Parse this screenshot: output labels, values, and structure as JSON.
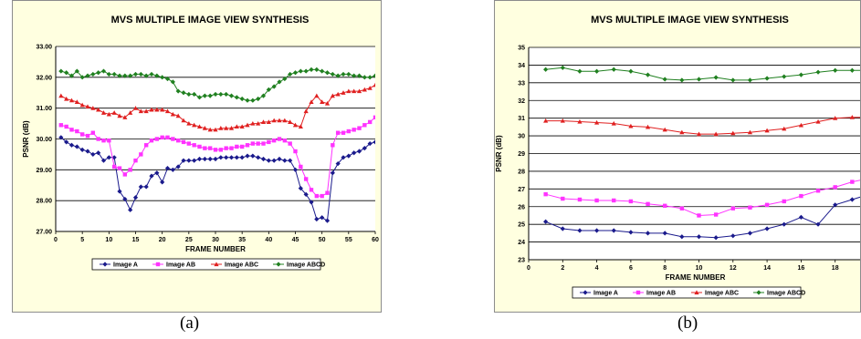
{
  "captions": [
    "(a)",
    "(b)"
  ],
  "legend_colors": [
    "#1a1a8c",
    "#ff33ff",
    "#e02020",
    "#208020"
  ],
  "legend_markers": [
    "diamond",
    "square",
    "triangle",
    "diamond"
  ],
  "chart_data": [
    {
      "type": "line",
      "title": "MVS MULTIPLE IMAGE VIEW SYNTHESIS",
      "xlabel": "FRAME NUMBER",
      "ylabel": "PSNR (dB)",
      "xlim": [
        0,
        60
      ],
      "ylim": [
        27,
        33
      ],
      "xticks": [
        "0",
        "5",
        "10",
        "15",
        "20",
        "25",
        "30",
        "35",
        "40",
        "45",
        "50",
        "55",
        "60"
      ],
      "yticks": [
        "27.00",
        "28.00",
        "29.00",
        "30.00",
        "31.00",
        "32.00",
        "33.00"
      ],
      "grid": "horizontal",
      "legend_position": "bottom",
      "x": [
        1,
        2,
        3,
        4,
        5,
        6,
        7,
        8,
        9,
        10,
        11,
        12,
        13,
        14,
        15,
        16,
        17,
        18,
        19,
        20,
        21,
        22,
        23,
        24,
        25,
        26,
        27,
        28,
        29,
        30,
        31,
        32,
        33,
        34,
        35,
        36,
        37,
        38,
        39,
        40,
        41,
        42,
        43,
        44,
        45,
        46,
        47,
        48,
        49,
        50,
        51,
        52,
        53,
        54,
        55,
        56,
        57,
        58,
        59,
        60
      ],
      "series": [
        {
          "name": "Image A",
          "values": [
            30.05,
            29.9,
            29.8,
            29.75,
            29.65,
            29.6,
            29.5,
            29.55,
            29.3,
            29.4,
            29.4,
            28.3,
            28.05,
            27.7,
            28.1,
            28.45,
            28.45,
            28.8,
            28.9,
            28.6,
            29.05,
            29.0,
            29.1,
            29.3,
            29.3,
            29.3,
            29.35,
            29.35,
            29.35,
            29.35,
            29.4,
            29.4,
            29.4,
            29.4,
            29.4,
            29.45,
            29.45,
            29.4,
            29.35,
            29.3,
            29.3,
            29.35,
            29.3,
            29.3,
            29.0,
            28.4,
            28.2,
            27.95,
            27.4,
            27.45,
            27.35,
            28.9,
            29.2,
            29.4,
            29.45,
            29.55,
            29.6,
            29.7,
            29.85,
            29.9
          ]
        },
        {
          "name": "Image AB",
          "values": [
            30.45,
            30.4,
            30.3,
            30.25,
            30.15,
            30.1,
            30.2,
            30.0,
            29.95,
            29.95,
            29.1,
            29.05,
            28.85,
            29.0,
            29.3,
            29.5,
            29.8,
            29.95,
            30.0,
            30.05,
            30.05,
            30.0,
            29.95,
            29.9,
            29.85,
            29.8,
            29.75,
            29.7,
            29.7,
            29.65,
            29.65,
            29.7,
            29.7,
            29.75,
            29.75,
            29.8,
            29.85,
            29.85,
            29.85,
            29.9,
            29.95,
            30.0,
            29.95,
            29.85,
            29.6,
            29.1,
            28.7,
            28.35,
            28.15,
            28.15,
            28.25,
            29.8,
            30.2,
            30.2,
            30.25,
            30.3,
            30.35,
            30.45,
            30.55,
            30.7
          ]
        },
        {
          "name": "Image ABC",
          "values": [
            31.4,
            31.3,
            31.25,
            31.2,
            31.1,
            31.05,
            31.0,
            30.95,
            30.85,
            30.8,
            30.85,
            30.75,
            30.7,
            30.85,
            31.0,
            30.9,
            30.9,
            30.95,
            30.95,
            30.95,
            30.9,
            30.8,
            30.75,
            30.6,
            30.5,
            30.45,
            30.4,
            30.35,
            30.3,
            30.3,
            30.35,
            30.35,
            30.35,
            30.4,
            30.4,
            30.45,
            30.5,
            30.5,
            30.55,
            30.55,
            30.6,
            30.6,
            30.6,
            30.55,
            30.45,
            30.4,
            30.9,
            31.2,
            31.4,
            31.2,
            31.15,
            31.4,
            31.45,
            31.5,
            31.55,
            31.55,
            31.55,
            31.6,
            31.65,
            31.75
          ]
        },
        {
          "name": "Image ABCD",
          "values": [
            32.2,
            32.15,
            32.05,
            32.2,
            32.0,
            32.05,
            32.1,
            32.15,
            32.2,
            32.1,
            32.1,
            32.05,
            32.05,
            32.05,
            32.1,
            32.1,
            32.05,
            32.1,
            32.05,
            32.0,
            31.95,
            31.85,
            31.55,
            31.5,
            31.45,
            31.45,
            31.35,
            31.4,
            31.4,
            31.45,
            31.45,
            31.45,
            31.4,
            31.35,
            31.3,
            31.25,
            31.25,
            31.3,
            31.4,
            31.6,
            31.7,
            31.85,
            31.95,
            32.1,
            32.15,
            32.2,
            32.2,
            32.25,
            32.25,
            32.2,
            32.15,
            32.1,
            32.05,
            32.1,
            32.1,
            32.05,
            32.05,
            32.0,
            32.0,
            32.05
          ]
        }
      ],
      "legend": [
        "Image A",
        "Image AB",
        "Image ABC",
        "Image ABCD"
      ]
    },
    {
      "type": "line",
      "title": "MVS MULTIPLE IMAGE VIEW SYNTHESIS",
      "xlabel": "FRAME NUMBER",
      "ylabel": "PSNR (dB)",
      "xlim": [
        0,
        20
      ],
      "ylim": [
        23,
        35
      ],
      "xticks": [
        "0",
        "2",
        "4",
        "6",
        "8",
        "10",
        "12",
        "14",
        "16",
        "18",
        "20"
      ],
      "yticks": [
        "23",
        "24",
        "25",
        "26",
        "27",
        "28",
        "29",
        "30",
        "31",
        "32",
        "33",
        "34",
        "35"
      ],
      "grid": "horizontal",
      "legend_position": "bottom",
      "x": [
        1,
        2,
        3,
        4,
        5,
        6,
        7,
        8,
        9,
        10,
        11,
        12,
        13,
        14,
        15,
        16,
        17,
        18,
        19,
        20
      ],
      "series": [
        {
          "name": "Image A",
          "values": [
            25.15,
            24.75,
            24.65,
            24.65,
            24.65,
            24.55,
            24.5,
            24.5,
            24.3,
            24.3,
            24.25,
            24.35,
            24.5,
            24.75,
            25.0,
            25.4,
            25.0,
            26.1,
            26.4,
            26.7
          ]
        },
        {
          "name": "Image AB",
          "values": [
            26.7,
            26.45,
            26.4,
            26.35,
            26.35,
            26.3,
            26.15,
            26.05,
            25.9,
            25.5,
            25.55,
            25.9,
            25.95,
            26.1,
            26.3,
            26.6,
            26.9,
            27.1,
            27.4,
            27.6
          ]
        },
        {
          "name": "Image ABC",
          "values": [
            30.85,
            30.85,
            30.8,
            30.75,
            30.7,
            30.55,
            30.5,
            30.35,
            30.2,
            30.1,
            30.1,
            30.15,
            30.2,
            30.3,
            30.4,
            30.6,
            30.8,
            31.0,
            31.05,
            31.05
          ]
        },
        {
          "name": "Image ABCD",
          "values": [
            33.75,
            33.85,
            33.65,
            33.65,
            33.75,
            33.65,
            33.45,
            33.2,
            33.15,
            33.2,
            33.3,
            33.15,
            33.15,
            33.25,
            33.35,
            33.45,
            33.6,
            33.7,
            33.7,
            33.7
          ]
        }
      ],
      "legend": [
        "Image A",
        "Image AB",
        "Image ABC",
        "Image ABCD"
      ]
    }
  ]
}
